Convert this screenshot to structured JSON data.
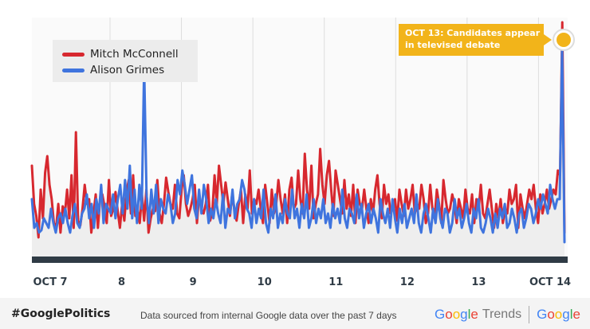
{
  "chart_data": {
    "type": "line",
    "x_labels": [
      "OCT 7",
      "8",
      "9",
      "10",
      "11",
      "12",
      "13",
      "OCT 14"
    ],
    "ylim": [
      0,
      100
    ],
    "grid": true,
    "legend_position": "top-left",
    "annotation": "OCT 13: Candidates appear in televised debate",
    "series": [
      {
        "name": "Mitch McConnell",
        "color": "#d7282f",
        "values": [
          38,
          22,
          17,
          8,
          28,
          16,
          35,
          42,
          30,
          24,
          14,
          12,
          22,
          10,
          21,
          18,
          28,
          16,
          34,
          12,
          52,
          15,
          13,
          20,
          30,
          22,
          24,
          10,
          18,
          26,
          12,
          24,
          26,
          21,
          14,
          32,
          17,
          20,
          27,
          19,
          12,
          22,
          15,
          27,
          32,
          18,
          34,
          17,
          20,
          14,
          26,
          15,
          28,
          10,
          16,
          20,
          19,
          32,
          18,
          14,
          22,
          33,
          27,
          22,
          20,
          30,
          18,
          16,
          28,
          34,
          22,
          17,
          20,
          24,
          30,
          14,
          26,
          20,
          18,
          22,
          30,
          15,
          19,
          34,
          22,
          38,
          30,
          22,
          31,
          24,
          17,
          26,
          20,
          15,
          22,
          28,
          14,
          26,
          20,
          36,
          18,
          24,
          22,
          28,
          20,
          14,
          30,
          22,
          14,
          28,
          18,
          22,
          32,
          24,
          18,
          26,
          14,
          28,
          33,
          20,
          22,
          36,
          24,
          18,
          43,
          28,
          20,
          38,
          16,
          22,
          26,
          45,
          30,
          22,
          34,
          40,
          28,
          17,
          36,
          30,
          24,
          18,
          32,
          20,
          26,
          17,
          30,
          14,
          28,
          22,
          20,
          28,
          20,
          14,
          24,
          18,
          28,
          34,
          22,
          16,
          30,
          22,
          26,
          18,
          20,
          24,
          15,
          28,
          22,
          17,
          28,
          20,
          24,
          30,
          18,
          22,
          20,
          30,
          24,
          14,
          18,
          30,
          20,
          16,
          28,
          22,
          14,
          32,
          24,
          18,
          20,
          26,
          22,
          14,
          24,
          20,
          16,
          28,
          20,
          18,
          26,
          14,
          24,
          20,
          30,
          18,
          16,
          22,
          28,
          20,
          12,
          22,
          16,
          24,
          14,
          20,
          18,
          28,
          22,
          24,
          30,
          12,
          26,
          20,
          16,
          22,
          28,
          24,
          30,
          20,
          14,
          26,
          18,
          22,
          28,
          20,
          24,
          28,
          26,
          36,
          34,
          98,
          10
        ]
      },
      {
        "name": "Alison Grimes",
        "color": "#3f74de",
        "values": [
          24,
          12,
          14,
          10,
          11,
          16,
          14,
          12,
          20,
          14,
          10,
          16,
          18,
          14,
          20,
          14,
          10,
          17,
          22,
          14,
          12,
          18,
          20,
          26,
          16,
          22,
          12,
          24,
          18,
          30,
          14,
          22,
          20,
          18,
          26,
          16,
          24,
          30,
          18,
          32,
          20,
          38,
          16,
          28,
          14,
          30,
          20,
          80,
          26,
          14,
          28,
          18,
          30,
          14,
          24,
          20,
          18,
          26,
          22,
          14,
          18,
          32,
          26,
          36,
          30,
          22,
          28,
          34,
          20,
          16,
          28,
          18,
          30,
          24,
          14,
          20,
          16,
          24,
          18,
          14,
          26,
          12,
          20,
          18,
          28,
          16,
          22,
          24,
          32,
          28,
          20,
          18,
          12,
          24,
          14,
          20,
          16,
          28,
          14,
          10,
          20,
          16,
          26,
          12,
          18,
          14,
          24,
          18,
          16,
          28,
          16,
          20,
          12,
          22,
          16,
          26,
          12,
          16,
          24,
          14,
          20,
          16,
          24,
          14,
          18,
          12,
          22,
          16,
          20,
          14,
          28,
          16,
          12,
          20,
          18,
          14,
          26,
          16,
          22,
          12,
          18,
          22,
          14,
          20,
          16,
          10,
          24,
          18,
          14,
          20,
          12,
          24,
          16,
          10,
          20,
          14,
          22,
          12,
          16,
          20,
          14,
          26,
          14,
          10,
          18,
          22,
          16,
          10,
          20,
          14,
          24,
          16,
          12,
          20,
          18,
          10,
          14,
          24,
          16,
          20,
          12,
          16,
          22,
          14,
          10,
          20,
          16,
          24,
          12,
          10,
          14,
          20,
          16,
          10,
          18,
          12,
          20,
          16,
          22,
          12,
          14,
          20,
          16,
          10,
          18,
          20,
          12,
          16,
          22,
          20,
          14,
          18,
          24,
          20,
          26,
          22,
          18,
          30,
          24,
          20,
          24,
          24,
          88,
          6
        ]
      }
    ]
  },
  "legend": [
    {
      "label": "Mitch McConnell",
      "color": "#d7282f"
    },
    {
      "label": "Alison Grimes",
      "color": "#3f74de"
    }
  ],
  "callout": {
    "line1": "OCT 13: Candidates appear",
    "line2": "in televised debate"
  },
  "footer": {
    "hashtag": "#GooglePolitics",
    "source": "Data sourced from internal Google data over the past 7 days",
    "brand": "Google",
    "product": "Trends",
    "brand2": "Google"
  }
}
